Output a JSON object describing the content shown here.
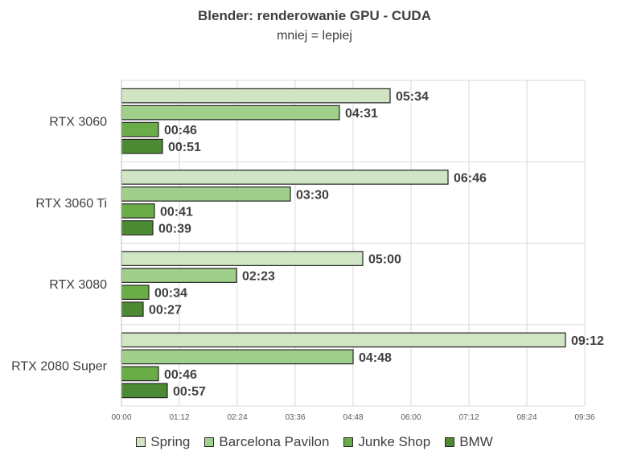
{
  "chart_data": {
    "type": "bar",
    "orientation": "horizontal",
    "title": "Blender: renderowanie GPU - CUDA",
    "subtitle": "mniej = lepiej",
    "categories": [
      "RTX 3060",
      "RTX 3060 Ti",
      "RTX 3080",
      "RTX 2080 Super"
    ],
    "x_tick_labels": [
      "00:00",
      "01:12",
      "02:24",
      "03:36",
      "04:48",
      "06:00",
      "07:12",
      "08:24",
      "09:36"
    ],
    "xlim_seconds": [
      0,
      576
    ],
    "x_tick_step_seconds": 72,
    "grid": true,
    "legend_position": "bottom",
    "series": [
      {
        "name": "Spring",
        "color": "#cfe5c3",
        "values_seconds": [
          334,
          406,
          300,
          552
        ],
        "labels": [
          "05:34",
          "06:46",
          "05:00",
          "09:12"
        ]
      },
      {
        "name": "Barcelona Pavilon",
        "color": "#9fcf8a",
        "values_seconds": [
          271,
          210,
          143,
          288
        ],
        "labels": [
          "04:31",
          "03:30",
          "02:23",
          "04:48"
        ]
      },
      {
        "name": "Junke Shop",
        "color": "#6aad48",
        "values_seconds": [
          46,
          41,
          34,
          46
        ],
        "labels": [
          "00:46",
          "00:41",
          "00:34",
          "00:46"
        ]
      },
      {
        "name": "BMW",
        "color": "#4d8a34",
        "values_seconds": [
          51,
          39,
          27,
          57
        ],
        "labels": [
          "00:51",
          "00:39",
          "00:27",
          "00:57"
        ]
      }
    ]
  }
}
